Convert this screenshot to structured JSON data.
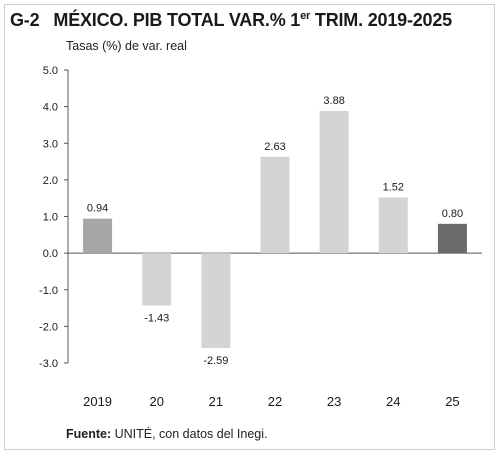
{
  "figure": {
    "number": "G-2",
    "title_pre": "MÉXICO. PIB TOTAL VAR.% 1",
    "title_sup": "er",
    "title_post": " TRIM. 2019-2025",
    "subtitle": "Tasas (%) de var. real",
    "source_label": "Fuente:",
    "source_text": " UNITÉ, con datos del Inegi."
  },
  "colors": {
    "bar_2019": "#a6a6a6",
    "bar_middle": "#d4d4d4",
    "bar_2025": "#6b6b6b",
    "axis": "#555555",
    "text": "#1a1a1a"
  },
  "chart_data": {
    "type": "bar",
    "categories": [
      "2019",
      "20",
      "21",
      "22",
      "23",
      "24",
      "25"
    ],
    "values": [
      0.94,
      -1.43,
      -2.59,
      2.63,
      3.88,
      1.52,
      0.8
    ],
    "value_labels": [
      "0.94",
      "-1.43",
      "-2.59",
      "2.63",
      "3.88",
      "1.52",
      "0.80"
    ],
    "ylim": [
      -3.0,
      5.0
    ],
    "yticks": [
      5.0,
      4.0,
      3.0,
      2.0,
      1.0,
      0.0,
      -1.0,
      -2.0,
      -3.0
    ],
    "ytick_labels": [
      "5.0",
      "4.0",
      "3.0",
      "2.0",
      "1.0",
      "0.0",
      "-1.0",
      "-2.0",
      "-3.0"
    ],
    "grid": false,
    "legend": "none"
  }
}
